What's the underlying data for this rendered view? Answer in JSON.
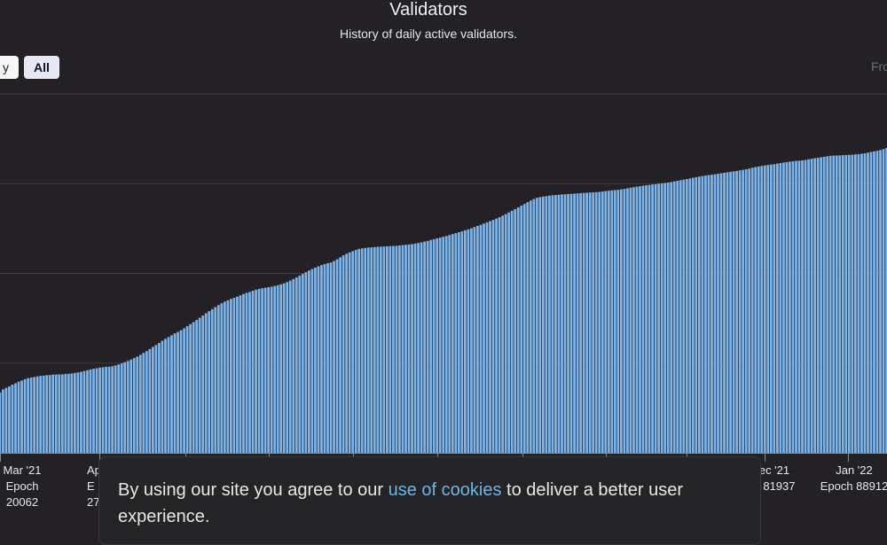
{
  "header": {
    "title": "Validators",
    "subtitle": "History of daily active validators."
  },
  "range_selector": {
    "buttons": [
      {
        "label": "y",
        "active": false
      },
      {
        "label": "All",
        "active": true
      }
    ],
    "from_label": "From"
  },
  "chart_data": {
    "type": "bar",
    "title": "Validators",
    "subtitle": "History of daily active validators.",
    "bar_color": "#7cb5ec",
    "grid": true,
    "x_ticks": [
      {
        "month": "Mar '21",
        "epoch": "Epoch",
        "epoch_num": "20062"
      },
      {
        "month": "Ap",
        "epoch": "E",
        "epoch_num": "27"
      },
      {
        "month": "ec '21",
        "epoch": "h 81937",
        "epoch_num": ""
      },
      {
        "month": "Jan '22",
        "epoch": "Epoch 88912",
        "epoch_num": ""
      }
    ],
    "series": [
      {
        "values": [
          99636,
          100173,
          101202,
          101710,
          102233,
          102803,
          103268,
          103796,
          104182,
          104624,
          104966,
          105185,
          105357,
          105566,
          105731,
          105804,
          105978,
          105999,
          106162,
          106174,
          106221,
          106245,
          106389,
          106445,
          106537,
          106713,
          106896,
          107099,
          107344,
          107622,
          107880,
          108112,
          108297,
          108488,
          108609,
          108768,
          108828,
          108948,
          109224,
          109545,
          109922,
          110320,
          110714,
          111189,
          111684,
          112158,
          112773,
          113446,
          114022,
          114715,
          115399,
          116071,
          116757,
          117473,
          118113,
          118702,
          119317,
          119931,
          120402,
          120986,
          121624,
          122351,
          123035,
          123716,
          124419,
          125149,
          125896,
          126681,
          127364,
          128076,
          128726,
          129413,
          130021,
          130576,
          131003,
          131470,
          131829,
          132218,
          132662,
          133121,
          133484,
          133807,
          134203,
          134537,
          134823,
          135030,
          135199,
          135372,
          135563,
          135804,
          136048,
          136336,
          136688,
          137090,
          137590,
          138130,
          138644,
          139225,
          139825,
          140394,
          140952,
          141463,
          141920,
          142371,
          142770,
          143135,
          143429,
          143662,
          144124,
          144728,
          145379,
          146023,
          146566,
          147014,
          147418,
          147852,
          148202,
          148349,
          148502,
          148643,
          148720,
          148816,
          148890,
          148947,
          149002,
          149072,
          149138,
          149169,
          149234,
          149330,
          149459,
          149563,
          149672,
          149798,
          149972,
          150152,
          150369,
          150619,
          150869,
          151146,
          151424,
          151697,
          151976,
          152245,
          152502,
          152816,
          153130,
          153444,
          153757,
          154077,
          154412,
          154751,
          155104,
          155484,
          155867,
          156265,
          156658,
          157070,
          157475,
          157879,
          158305,
          158776,
          159294,
          159836,
          160387,
          160951,
          161506,
          162059,
          162622,
          163201,
          163791,
          164350,
          164868,
          165280,
          165506,
          165680,
          165839,
          165990,
          166102,
          166214,
          166312,
          166401,
          166470,
          166532,
          166597,
          166669,
          166748,
          166831,
          166911,
          166986,
          167043,
          167098,
          167161,
          167256,
          167383,
          167521,
          167650,
          167756,
          167848,
          167952,
          168089,
          168261,
          168463,
          168651,
          168824,
          169000,
          169159,
          169322,
          169463,
          169583,
          169711,
          169857,
          170003,
          170122,
          170232,
          170374,
          170552,
          170753,
          170963,
          171166,
          171358,
          171556,
          171760,
          171979,
          172188,
          172368,
          172546,
          172715,
          172870,
          173002,
          173144,
          173310,
          173486,
          173650,
          173799,
          173951,
          174109,
          174263,
          174435,
          174617,
          174808,
          175046,
          175323,
          175552,
          175734,
          175924,
          176107,
          176238,
          176370,
          176516,
          176709,
          176916,
          177069,
          177201,
          177363,
          177506,
          177610,
          177684,
          177792,
          177936,
          178137,
          178359,
          178520,
          178662,
          178839,
          179003,
          179175,
          179327,
          179382,
          179429,
          179448,
          179535,
          179583,
          179626,
          179692,
          179800,
          179882,
          180005,
          180175,
          180386,
          180605,
          180796,
          181000,
          181253,
          181583,
          181955,
          182340,
          182697,
          183126,
          183552
        ]
      }
    ]
  },
  "cookie_banner": {
    "text_before": "By using our site you agree to our",
    "link_text": "use of cookies",
    "text_after": "to deliver a better user experience."
  }
}
